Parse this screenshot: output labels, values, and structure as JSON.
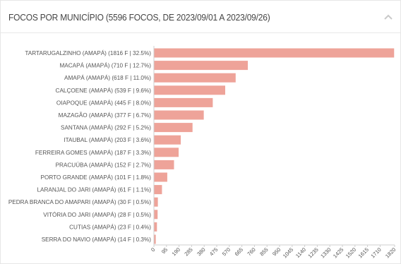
{
  "panel": {
    "title": "FOCOS POR MUNICÍPIO (5596 FOCOS, DE 2023/09/01 A 2023/09/26)",
    "collapse_icon": "chevron-up-icon"
  },
  "colors": {
    "bar": "#eea399",
    "axis": "#cfcfcf"
  },
  "chart_data": {
    "type": "bar",
    "orientation": "horizontal",
    "title": "FOCOS POR MUNICÍPIO (5596 FOCOS, DE 2023/09/01 A 2023/09/26)",
    "categories": [
      "TARTARUGALZINHO (AMAPÁ) (1816 F | 32.5%)",
      "MACAPÁ (AMAPÁ) (710 F | 12.7%)",
      "AMAPÁ (AMAPÁ) (618 F | 11.0%)",
      "CALÇOENE (AMAPÁ) (539 F | 9.6%)",
      "OIAPOQUE (AMAPÁ) (445 F | 8.0%)",
      "MAZAGÃO (AMAPÁ) (377 F | 6.7%)",
      "SANTANA (AMAPÁ) (292 F | 5.2%)",
      "ITAUBAL (AMAPÁ) (203 F | 3.6%)",
      "FERREIRA GOMES (AMAPÁ) (187 F | 3.3%)",
      "PRACUÚBA (AMAPÁ) (152 F | 2.7%)",
      "PORTO GRANDE (AMAPÁ) (101 F | 1.8%)",
      "LARANJAL DO JARI (AMAPÁ) (61 F | 1.1%)",
      "PEDRA BRANCA DO AMAPARI (AMAPÁ) (30 F | 0.5%)",
      "VITÓRIA DO JARI (AMAPÁ) (28 F | 0.5%)",
      "CUTIAS (AMAPÁ) (23 F | 0.4%)",
      "SERRA DO NAVIO (AMAPÁ) (14 F | 0.3%)"
    ],
    "values": [
      1816,
      710,
      618,
      539,
      445,
      377,
      292,
      203,
      187,
      152,
      101,
      61,
      30,
      28,
      23,
      14
    ],
    "xticks": [
      0,
      95,
      190,
      285,
      380,
      475,
      570,
      665,
      760,
      855,
      950,
      1045,
      1140,
      1235,
      1330,
      1425,
      1520,
      1615,
      1710,
      1820
    ],
    "xlim": [
      0,
      1820
    ],
    "xlabel": "",
    "ylabel": "",
    "grid": false
  }
}
